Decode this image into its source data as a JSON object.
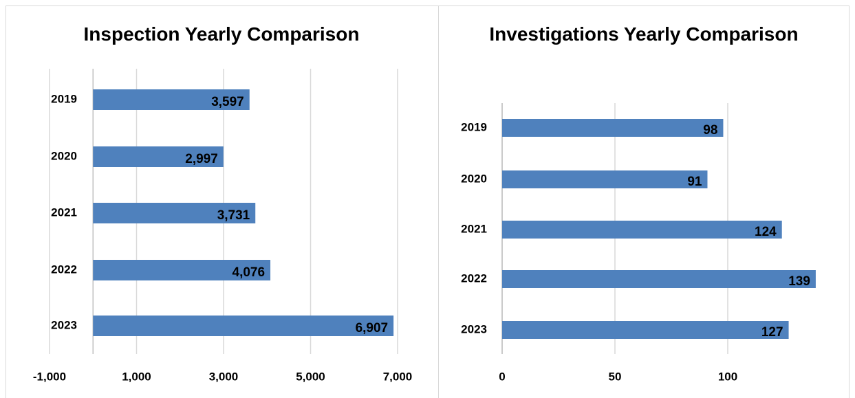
{
  "chart_data": [
    {
      "type": "bar",
      "orientation": "horizontal",
      "title": "Inspection Yearly Comparison",
      "categories": [
        "2019",
        "2020",
        "2021",
        "2022",
        "2023"
      ],
      "values": [
        3597,
        2997,
        3731,
        4076,
        6907
      ],
      "value_labels": [
        "3,597",
        "2,997",
        "3,731",
        "4,076",
        "6,907"
      ],
      "color": "#4f81bd",
      "xlim": [
        -1000,
        7000
      ],
      "xticks": [
        {
          "value": -1000,
          "label": "-1,000"
        },
        {
          "value": 1000,
          "label": "1,000"
        },
        {
          "value": 3000,
          "label": "3,000"
        },
        {
          "value": 5000,
          "label": "5,000"
        },
        {
          "value": 7000,
          "label": "7,000"
        }
      ],
      "grid": true
    },
    {
      "type": "bar",
      "orientation": "horizontal",
      "title": "Investigations Yearly Comparison",
      "categories": [
        "2019",
        "2020",
        "2021",
        "2022",
        "2023"
      ],
      "values": [
        98,
        91,
        124,
        139,
        127
      ],
      "color": "#4f81bd",
      "xlim": [
        0,
        150
      ],
      "xticks": [
        0,
        50,
        100
      ],
      "grid": true
    }
  ]
}
